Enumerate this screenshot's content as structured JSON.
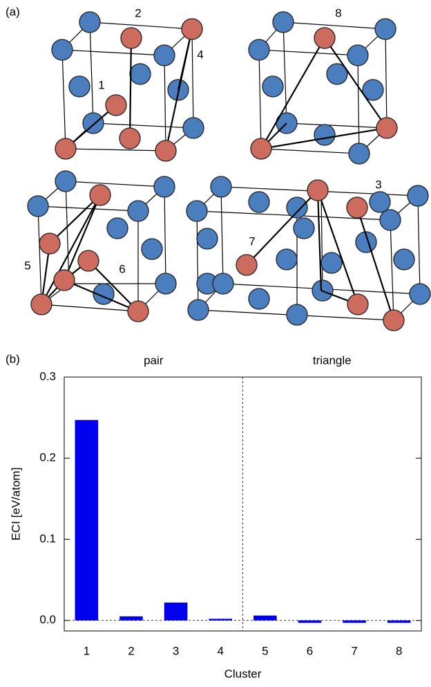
{
  "panel_labels": [
    "(a)",
    "(b)"
  ],
  "diagram": {
    "labels": [
      "1",
      "2",
      "3",
      "4",
      "5",
      "6",
      "7",
      "8"
    ]
  },
  "chart_data": {
    "type": "bar",
    "categories": [
      "1",
      "2",
      "3",
      "4",
      "5",
      "6",
      "7",
      "8"
    ],
    "values": [
      0.247,
      0.005,
      0.022,
      0.002,
      0.006,
      -0.003,
      -0.003,
      -0.003
    ],
    "color": "#0000ee",
    "annotations": [
      "pair",
      "triangle"
    ],
    "xlabel": "Cluster",
    "ylabel": "ECI [eV/atom]",
    "ylim": [
      -0.013,
      0.3
    ],
    "yticks": [
      {
        "value": 0,
        "label": "0.0"
      },
      0.1,
      0.2,
      0.3
    ]
  }
}
